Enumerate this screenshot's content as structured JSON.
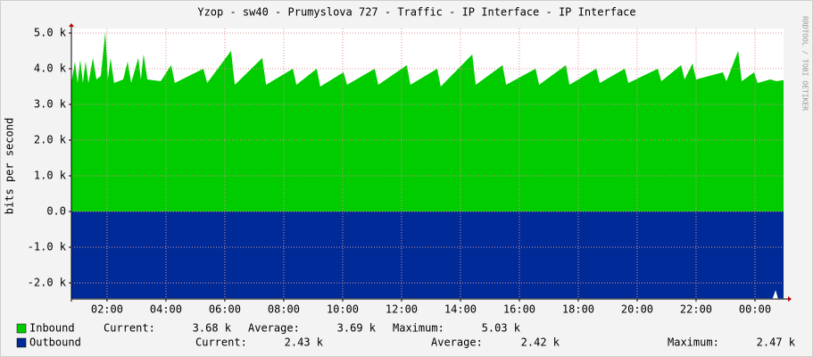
{
  "chart_data": {
    "type": "area",
    "title": "Yzop - sw40 - Prumyslova 727 - Traffic - IP Interface - IP Interface",
    "y_label": "bits per second",
    "watermark": "RRDTOOL / TOBI OETIKER",
    "xlim": [
      0.79,
      24.97
    ],
    "xticks": [
      {
        "value": 2,
        "label": "02:00"
      },
      {
        "value": 4,
        "label": "04:00"
      },
      {
        "value": 6,
        "label": "06:00"
      },
      {
        "value": 8,
        "label": "08:00"
      },
      {
        "value": 10,
        "label": "10:00"
      },
      {
        "value": 12,
        "label": "12:00"
      },
      {
        "value": 14,
        "label": "14:00"
      },
      {
        "value": 16,
        "label": "16:00"
      },
      {
        "value": 18,
        "label": "18:00"
      },
      {
        "value": 20,
        "label": "20:00"
      },
      {
        "value": 22,
        "label": "22:00"
      },
      {
        "value": 24,
        "label": "00:00"
      }
    ],
    "ylim": [
      -2450,
      5125
    ],
    "yticks": [
      {
        "value": 5000,
        "label": "5.0 k"
      },
      {
        "value": 4000,
        "label": "4.0 k"
      },
      {
        "value": 3000,
        "label": "3.0 k"
      },
      {
        "value": 2000,
        "label": "2.0 k"
      },
      {
        "value": 1000,
        "label": "1.0 k"
      },
      {
        "value": 0,
        "label": "0.0"
      },
      {
        "value": -1000,
        "label": "-1.0 k"
      },
      {
        "value": -2000,
        "label": "-2.0 k"
      }
    ],
    "grid": true,
    "stat_labels": {
      "current": "Current:",
      "average": "Average:",
      "maximum": "Maximum:"
    },
    "series": [
      {
        "name": "Inbound",
        "color": "#00cc00",
        "x": [
          0.79,
          0.91,
          1.0,
          1.09,
          1.18,
          1.27,
          1.37,
          1.52,
          1.64,
          1.79,
          1.94,
          2.03,
          2.12,
          2.24,
          2.55,
          2.7,
          2.82,
          3.06,
          3.15,
          3.24,
          3.37,
          3.82,
          4.18,
          4.3,
          5.27,
          5.4,
          6.21,
          6.34,
          7.27,
          7.4,
          8.31,
          8.43,
          9.12,
          9.24,
          10.03,
          10.15,
          11.09,
          11.21,
          12.18,
          12.3,
          13.21,
          13.33,
          14.4,
          14.52,
          15.43,
          15.55,
          16.55,
          16.67,
          17.58,
          17.7,
          18.61,
          18.73,
          19.58,
          19.7,
          20.7,
          20.82,
          21.49,
          21.61,
          21.88,
          22.0,
          22.91,
          23.03,
          23.43,
          23.55,
          23.97,
          24.09,
          24.52,
          24.73,
          24.97
        ],
        "values": [
          3600,
          4200,
          3600,
          4250,
          3600,
          4200,
          3600,
          4300,
          3700,
          3800,
          5030,
          3700,
          4300,
          3600,
          3700,
          4200,
          3600,
          4300,
          3700,
          4400,
          3700,
          3650,
          4100,
          3600,
          4000,
          3600,
          4500,
          3550,
          4300,
          3550,
          4000,
          3550,
          4000,
          3500,
          3900,
          3550,
          4000,
          3550,
          4100,
          3550,
          4000,
          3500,
          4400,
          3550,
          4100,
          3550,
          4000,
          3550,
          4100,
          3550,
          4000,
          3600,
          4000,
          3600,
          4000,
          3650,
          4100,
          3700,
          4150,
          3700,
          3900,
          3650,
          4500,
          3650,
          3900,
          3600,
          3700,
          3650,
          3680
        ],
        "stats": {
          "current": "3.68 k",
          "average": "3.69 k",
          "maximum": "5.03 k"
        }
      },
      {
        "name": "Outbound",
        "color": "#002a97",
        "x": [
          0.79,
          24.6,
          24.7,
          24.78,
          24.97
        ],
        "values": [
          -2430,
          -2430,
          -2200,
          -2430,
          -2430
        ],
        "stats": {
          "current": "2.43 k",
          "average": "2.42 k",
          "maximum": "2.47 k"
        }
      }
    ]
  }
}
